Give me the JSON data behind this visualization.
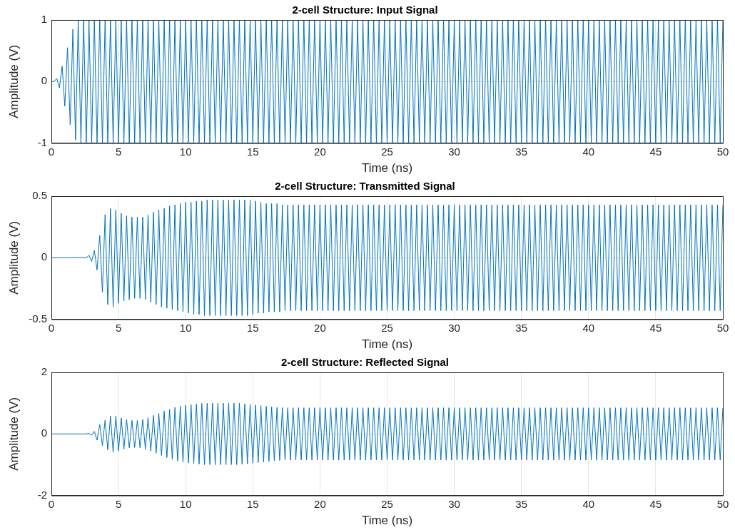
{
  "chart_data": [
    {
      "type": "line",
      "title": "2-cell Structure: Input Signal",
      "xlabel": "Time (ns)",
      "ylabel": "Amplitude (V)",
      "xlim": [
        0,
        50
      ],
      "ylim": [
        -1,
        1
      ],
      "xticks": [
        0,
        5,
        10,
        15,
        20,
        25,
        30,
        35,
        40,
        45,
        50
      ],
      "yticks": [
        -1,
        0,
        1
      ],
      "grid": true,
      "marker": "none",
      "line_style": "solid",
      "x": [
        0,
        0.2,
        0.4,
        0.6,
        0.8,
        1,
        1.2,
        1.4,
        1.6,
        1.8,
        2,
        2.2,
        2.4,
        2.6,
        2.8,
        3,
        3.2,
        3.4,
        3.6,
        3.8,
        4,
        4.2,
        4.4,
        4.6,
        4.8,
        5,
        5.2,
        5.4,
        5.6,
        5.8,
        6,
        6.2,
        6.4,
        6.6,
        6.8,
        7,
        7.2,
        7.4,
        7.6,
        7.8,
        8,
        8.2,
        8.4,
        8.6,
        8.8,
        9,
        9.2,
        9.4,
        9.6,
        9.8,
        10,
        10.2,
        10.4,
        10.6,
        10.8,
        11,
        11.2,
        11.4,
        11.6,
        11.8,
        12,
        12.2,
        12.4,
        12.6,
        12.8,
        13,
        13.2,
        13.4,
        13.6,
        13.8,
        14,
        14.2,
        14.4,
        14.6,
        14.8,
        15,
        15.2,
        15.4,
        15.6,
        15.8,
        16,
        16.2,
        16.4,
        16.6,
        16.8,
        17,
        17.2,
        17.4,
        17.6,
        17.8,
        18,
        18.2,
        18.4,
        18.6,
        18.8,
        19,
        19.2,
        19.4,
        19.6,
        19.8,
        20,
        20.2,
        20.4,
        20.6,
        20.8,
        21,
        21.2,
        21.4,
        21.6,
        21.8,
        22,
        22.2,
        22.4,
        22.6,
        22.8,
        23,
        23.2,
        23.4,
        23.6,
        23.8,
        24,
        24.2,
        24.4,
        24.6,
        24.8,
        25,
        25.2,
        25.4,
        25.6,
        25.8,
        26,
        26.2,
        26.4,
        26.6,
        26.8,
        27,
        27.2,
        27.4,
        27.6,
        27.8,
        28,
        28.2,
        28.4,
        28.6,
        28.8,
        29,
        29.2,
        29.4,
        29.6,
        29.8,
        30,
        30.2,
        30.4,
        30.6,
        30.8,
        31,
        31.2,
        31.4,
        31.6,
        31.8,
        32,
        32.2,
        32.4,
        32.6,
        32.8,
        33,
        33.2,
        33.4,
        33.6,
        33.8,
        34,
        34.2,
        34.4,
        34.6,
        34.8,
        35,
        35.2,
        35.4,
        35.6,
        35.8,
        36,
        36.2,
        36.4,
        36.6,
        36.8,
        37,
        37.2,
        37.4,
        37.6,
        37.8,
        38,
        38.2,
        38.4,
        38.6,
        38.8,
        39,
        39.2,
        39.4,
        39.6,
        39.8,
        40,
        40.2,
        40.4,
        40.6,
        40.8,
        41,
        41.2,
        41.4,
        41.6,
        41.8,
        42,
        42.2,
        42.4,
        42.6,
        42.8,
        43,
        43.2,
        43.4,
        43.6,
        43.8,
        44,
        44.2,
        44.4,
        44.6,
        44.8,
        45,
        45.2,
        45.4,
        45.6,
        45.8,
        46,
        46.2,
        46.4,
        46.6,
        46.8,
        47,
        47.2,
        47.4,
        47.6,
        47.8,
        48,
        48.2,
        48.4,
        48.6,
        48.8,
        49,
        49.2,
        49.4,
        49.6,
        49.8,
        50
      ],
      "series": [
        {
          "color": "#0072bd",
          "values": [
            0,
            0,
            0.05,
            -0.1,
            0.25,
            -0.4,
            0.55,
            -0.7,
            0.85,
            -0.95,
            1,
            -1,
            1,
            -1,
            1,
            -1,
            1,
            -1,
            1,
            -1,
            1,
            -1,
            1,
            -1,
            1,
            -1,
            1,
            -1,
            1,
            -1,
            1,
            -1,
            1,
            -1,
            1,
            -1,
            1,
            -1,
            1,
            -1,
            1,
            -1,
            1,
            -1,
            1,
            -1,
            1,
            -1,
            1,
            -1,
            1,
            -1,
            1,
            -1,
            1,
            -1,
            1,
            -1,
            1,
            -1,
            1,
            -1,
            1,
            -1,
            1,
            -1,
            1,
            -1,
            1,
            -1,
            1,
            -1,
            1,
            -1,
            1,
            -1,
            1,
            -1,
            1,
            -1,
            1,
            -1,
            1,
            -1,
            1,
            -1,
            1,
            -1,
            1,
            -1,
            1,
            -1,
            1,
            -1,
            1,
            -1,
            1,
            -1,
            1,
            -1,
            1,
            -1,
            1,
            -1,
            1,
            -1,
            1,
            -1,
            1,
            -1,
            1,
            -1,
            1,
            -1,
            1,
            -1,
            1,
            -1,
            1,
            -1,
            1,
            -1,
            1,
            -1,
            1,
            -1,
            1,
            -1,
            1,
            -1,
            1,
            -1,
            1,
            -1,
            1,
            -1,
            1,
            -1,
            1,
            -1,
            1,
            -1,
            1,
            -1,
            1,
            -1,
            1,
            -1,
            1,
            -1,
            1,
            -1,
            1,
            -1,
            1,
            -1,
            1,
            -1,
            1,
            -1,
            1,
            -1,
            1,
            -1,
            1,
            -1,
            1,
            -1,
            1,
            -1,
            1,
            -1,
            1,
            -1,
            1,
            -1,
            1,
            -1,
            1,
            -1,
            1,
            -1,
            1,
            -1,
            1,
            -1,
            1,
            -1,
            1,
            -1,
            1,
            -1,
            1,
            -1,
            1,
            -1,
            1,
            -1,
            1,
            -1,
            1,
            -1,
            1,
            -1,
            1,
            -1,
            1,
            -1,
            1,
            -1,
            1,
            -1,
            1,
            -1,
            1,
            -1,
            1,
            -1,
            1,
            -1,
            1,
            -1,
            1,
            -1,
            1,
            -1,
            1,
            -1,
            1,
            -1,
            1,
            -1,
            1,
            -1,
            1,
            -1,
            1,
            -1,
            1,
            -1,
            1,
            -1,
            1,
            -1,
            1,
            -1,
            1,
            -1,
            1,
            -1,
            1
          ]
        }
      ]
    },
    {
      "type": "line",
      "title": "2-cell Structure: Transmitted Signal",
      "xlabel": "Time (ns)",
      "ylabel": "Amplitude (V)",
      "xlim": [
        0,
        50
      ],
      "ylim": [
        -0.5,
        0.5
      ],
      "xticks": [
        0,
        5,
        10,
        15,
        20,
        25,
        30,
        35,
        40,
        45,
        50
      ],
      "yticks": [
        -0.5,
        0,
        0.5
      ],
      "grid": true,
      "marker": "none",
      "line_style": "solid",
      "x": [
        0,
        0.2,
        0.4,
        0.6,
        0.8,
        1,
        1.2,
        1.4,
        1.6,
        1.8,
        2,
        2.2,
        2.4,
        2.6,
        2.8,
        3,
        3.2,
        3.4,
        3.6,
        3.8,
        4,
        4.2,
        4.4,
        4.6,
        4.8,
        5,
        5.2,
        5.4,
        5.6,
        5.8,
        6,
        6.2,
        6.4,
        6.6,
        6.8,
        7,
        7.2,
        7.4,
        7.6,
        7.8,
        8,
        8.2,
        8.4,
        8.6,
        8.8,
        9,
        9.2,
        9.4,
        9.6,
        9.8,
        10,
        10.2,
        10.4,
        10.6,
        10.8,
        11,
        11.2,
        11.4,
        11.6,
        11.8,
        12,
        12.2,
        12.4,
        12.6,
        12.8,
        13,
        13.2,
        13.4,
        13.6,
        13.8,
        14,
        14.2,
        14.4,
        14.6,
        14.8,
        15,
        15.2,
        15.4,
        15.6,
        15.8,
        16,
        16.2,
        16.4,
        16.6,
        16.8,
        17,
        17.2,
        17.4,
        17.6,
        17.8,
        18,
        18.2,
        18.4,
        18.6,
        18.8,
        19,
        19.2,
        19.4,
        19.6,
        19.8,
        20,
        20.2,
        20.4,
        20.6,
        20.8,
        21,
        21.2,
        21.4,
        21.6,
        21.8,
        22,
        22.2,
        22.4,
        22.6,
        22.8,
        23,
        23.2,
        23.4,
        23.6,
        23.8,
        24,
        24.2,
        24.4,
        24.6,
        24.8,
        25,
        25.2,
        25.4,
        25.6,
        25.8,
        26,
        26.2,
        26.4,
        26.6,
        26.8,
        27,
        27.2,
        27.4,
        27.6,
        27.8,
        28,
        28.2,
        28.4,
        28.6,
        28.8,
        29,
        29.2,
        29.4,
        29.6,
        29.8,
        30,
        30.2,
        30.4,
        30.6,
        30.8,
        31,
        31.2,
        31.4,
        31.6,
        31.8,
        32,
        32.2,
        32.4,
        32.6,
        32.8,
        33,
        33.2,
        33.4,
        33.6,
        33.8,
        34,
        34.2,
        34.4,
        34.6,
        34.8,
        35,
        35.2,
        35.4,
        35.6,
        35.8,
        36,
        36.2,
        36.4,
        36.6,
        36.8,
        37,
        37.2,
        37.4,
        37.6,
        37.8,
        38,
        38.2,
        38.4,
        38.6,
        38.8,
        39,
        39.2,
        39.4,
        39.6,
        39.8,
        40,
        40.2,
        40.4,
        40.6,
        40.8,
        41,
        41.2,
        41.4,
        41.6,
        41.8,
        42,
        42.2,
        42.4,
        42.6,
        42.8,
        43,
        43.2,
        43.4,
        43.6,
        43.8,
        44,
        44.2,
        44.4,
        44.6,
        44.8,
        45,
        45.2,
        45.4,
        45.6,
        45.8,
        46,
        46.2,
        46.4,
        46.6,
        46.8,
        47,
        47.2,
        47.4,
        47.6,
        47.8,
        48,
        48.2,
        48.4,
        48.6,
        48.8,
        49,
        49.2,
        49.4,
        49.6,
        49.8,
        50
      ],
      "series": [
        {
          "color": "#0072bd",
          "values": [
            0,
            0,
            0,
            0,
            0,
            0,
            0,
            0,
            0,
            0,
            0,
            0,
            0,
            0,
            0.02,
            -0.03,
            0.06,
            -0.1,
            0.18,
            -0.28,
            0.35,
            -0.38,
            0.4,
            -0.4,
            0.39,
            -0.37,
            0.36,
            -0.35,
            0.34,
            -0.34,
            0.33,
            -0.33,
            0.33,
            -0.33,
            0.33,
            -0.34,
            0.35,
            -0.36,
            0.37,
            -0.38,
            0.39,
            -0.4,
            0.4,
            -0.41,
            0.42,
            -0.42,
            0.43,
            -0.43,
            0.44,
            -0.44,
            0.45,
            -0.45,
            0.45,
            -0.46,
            0.46,
            -0.46,
            0.46,
            -0.47,
            0.47,
            -0.47,
            0.47,
            -0.47,
            0.47,
            -0.47,
            0.47,
            -0.47,
            0.47,
            -0.47,
            0.47,
            -0.47,
            0.47,
            -0.47,
            0.47,
            -0.47,
            0.47,
            -0.46,
            0.46,
            -0.45,
            0.45,
            -0.45,
            0.44,
            -0.44,
            0.44,
            -0.44,
            0.44,
            -0.44,
            0.43,
            -0.43,
            0.43,
            -0.43,
            0.43,
            -0.43,
            0.43,
            -0.43,
            0.43,
            -0.43,
            0.43,
            -0.43,
            0.43,
            -0.43,
            0.43,
            -0.43,
            0.43,
            -0.43,
            0.43,
            -0.43,
            0.43,
            -0.43,
            0.43,
            -0.43,
            0.43,
            -0.43,
            0.43,
            -0.43,
            0.43,
            -0.43,
            0.43,
            -0.43,
            0.43,
            -0.43,
            0.43,
            -0.43,
            0.43,
            -0.43,
            0.43,
            -0.43,
            0.43,
            -0.43,
            0.43,
            -0.43,
            0.43,
            -0.43,
            0.43,
            -0.43,
            0.43,
            -0.43,
            0.43,
            -0.43,
            0.43,
            -0.43,
            0.43,
            -0.43,
            0.43,
            -0.43,
            0.43,
            -0.43,
            0.43,
            -0.43,
            0.43,
            -0.43,
            0.43,
            -0.43,
            0.43,
            -0.43,
            0.43,
            -0.43,
            0.43,
            -0.43,
            0.43,
            -0.43,
            0.43,
            -0.43,
            0.43,
            -0.43,
            0.43,
            -0.43,
            0.43,
            -0.43,
            0.43,
            -0.43,
            0.43,
            -0.43,
            0.43,
            -0.43,
            0.43,
            -0.43,
            0.43,
            -0.43,
            0.43,
            -0.43,
            0.43,
            -0.43,
            0.43,
            -0.43,
            0.43,
            -0.43,
            0.43,
            -0.43,
            0.43,
            -0.43,
            0.43,
            -0.43,
            0.43,
            -0.43,
            0.43,
            -0.43,
            0.43,
            -0.43,
            0.43,
            -0.43,
            0.43,
            -0.43,
            0.43,
            -0.43,
            0.43,
            -0.43,
            0.43,
            -0.43,
            0.43,
            -0.43,
            0.43,
            -0.43,
            0.43,
            -0.43,
            0.43,
            -0.43,
            0.43,
            -0.43,
            0.43,
            -0.43,
            0.43,
            -0.43,
            0.43,
            -0.43,
            0.43,
            -0.43,
            0.43,
            -0.43,
            0.43,
            -0.43,
            0.43,
            -0.43,
            0.43,
            -0.43,
            0.43,
            -0.43,
            0.43,
            -0.43,
            0.43,
            -0.43,
            0.43,
            -0.43,
            0.43,
            -0.43,
            0.43,
            -0.43,
            0.43,
            -0.43,
            0.43,
            -0.43,
            0.43
          ]
        }
      ]
    },
    {
      "type": "line",
      "title": "2-cell Structure: Reflected Signal",
      "xlabel": "Time (ns)",
      "ylabel": "Amplitude (V)",
      "xlim": [
        0,
        50
      ],
      "ylim": [
        -2,
        2
      ],
      "xticks": [
        0,
        5,
        10,
        15,
        20,
        25,
        30,
        35,
        40,
        45,
        50
      ],
      "yticks": [
        -2,
        0,
        2
      ],
      "grid": true,
      "marker": "none",
      "line_style": "solid",
      "x": [
        0,
        0.2,
        0.4,
        0.6,
        0.8,
        1,
        1.2,
        1.4,
        1.6,
        1.8,
        2,
        2.2,
        2.4,
        2.6,
        2.8,
        3,
        3.2,
        3.4,
        3.6,
        3.8,
        4,
        4.2,
        4.4,
        4.6,
        4.8,
        5,
        5.2,
        5.4,
        5.6,
        5.8,
        6,
        6.2,
        6.4,
        6.6,
        6.8,
        7,
        7.2,
        7.4,
        7.6,
        7.8,
        8,
        8.2,
        8.4,
        8.6,
        8.8,
        9,
        9.2,
        9.4,
        9.6,
        9.8,
        10,
        10.2,
        10.4,
        10.6,
        10.8,
        11,
        11.2,
        11.4,
        11.6,
        11.8,
        12,
        12.2,
        12.4,
        12.6,
        12.8,
        13,
        13.2,
        13.4,
        13.6,
        13.8,
        14,
        14.2,
        14.4,
        14.6,
        14.8,
        15,
        15.2,
        15.4,
        15.6,
        15.8,
        16,
        16.2,
        16.4,
        16.6,
        16.8,
        17,
        17.2,
        17.4,
        17.6,
        17.8,
        18,
        18.2,
        18.4,
        18.6,
        18.8,
        19,
        19.2,
        19.4,
        19.6,
        19.8,
        20,
        20.2,
        20.4,
        20.6,
        20.8,
        21,
        21.2,
        21.4,
        21.6,
        21.8,
        22,
        22.2,
        22.4,
        22.6,
        22.8,
        23,
        23.2,
        23.4,
        23.6,
        23.8,
        24,
        24.2,
        24.4,
        24.6,
        24.8,
        25,
        25.2,
        25.4,
        25.6,
        25.8,
        26,
        26.2,
        26.4,
        26.6,
        26.8,
        27,
        27.2,
        27.4,
        27.6,
        27.8,
        28,
        28.2,
        28.4,
        28.6,
        28.8,
        29,
        29.2,
        29.4,
        29.6,
        29.8,
        30,
        30.2,
        30.4,
        30.6,
        30.8,
        31,
        31.2,
        31.4,
        31.6,
        31.8,
        32,
        32.2,
        32.4,
        32.6,
        32.8,
        33,
        33.2,
        33.4,
        33.6,
        33.8,
        34,
        34.2,
        34.4,
        34.6,
        34.8,
        35,
        35.2,
        35.4,
        35.6,
        35.8,
        36,
        36.2,
        36.4,
        36.6,
        36.8,
        37,
        37.2,
        37.4,
        37.6,
        37.8,
        38,
        38.2,
        38.4,
        38.6,
        38.8,
        39,
        39.2,
        39.4,
        39.6,
        39.8,
        40,
        40.2,
        40.4,
        40.6,
        40.8,
        41,
        41.2,
        41.4,
        41.6,
        41.8,
        42,
        42.2,
        42.4,
        42.6,
        42.8,
        43,
        43.2,
        43.4,
        43.6,
        43.8,
        44,
        44.2,
        44.4,
        44.6,
        44.8,
        45,
        45.2,
        45.4,
        45.6,
        45.8,
        46,
        46.2,
        46.4,
        46.6,
        46.8,
        47,
        47.2,
        47.4,
        47.6,
        47.8,
        48,
        48.2,
        48.4,
        48.6,
        48.8,
        49,
        49.2,
        49.4,
        49.6,
        49.8,
        50
      ],
      "series": [
        {
          "color": "#0072bd",
          "values": [
            0,
            0,
            0,
            0,
            0,
            0,
            0,
            0,
            0,
            0,
            0,
            0,
            0,
            0,
            0.02,
            -0.04,
            0.08,
            -0.2,
            0.3,
            -0.38,
            0.45,
            -0.52,
            0.58,
            -0.6,
            0.58,
            -0.55,
            0.52,
            -0.5,
            0.47,
            -0.45,
            0.44,
            -0.44,
            0.44,
            -0.45,
            0.47,
            -0.5,
            0.53,
            -0.56,
            0.6,
            -0.63,
            0.67,
            -0.7,
            0.74,
            -0.77,
            0.8,
            -0.83,
            0.86,
            -0.88,
            0.9,
            -0.91,
            0.93,
            -0.94,
            0.95,
            -0.96,
            0.97,
            -0.98,
            0.99,
            -1,
            1,
            -1,
            1,
            -1,
            1,
            -1,
            1,
            -1,
            1,
            -1,
            1,
            -1,
            1,
            -0.99,
            0.98,
            -0.97,
            0.96,
            -0.95,
            0.94,
            -0.93,
            0.92,
            -0.91,
            0.9,
            -0.89,
            0.88,
            -0.87,
            0.86,
            -0.86,
            0.85,
            -0.85,
            0.85,
            -0.85,
            0.85,
            -0.85,
            0.85,
            -0.85,
            0.85,
            -0.85,
            0.85,
            -0.85,
            0.85,
            -0.85,
            0.85,
            -0.85,
            0.85,
            -0.85,
            0.85,
            -0.85,
            0.85,
            -0.85,
            0.85,
            -0.85,
            0.85,
            -0.85,
            0.85,
            -0.85,
            0.85,
            -0.85,
            0.85,
            -0.85,
            0.85,
            -0.85,
            0.85,
            -0.85,
            0.85,
            -0.85,
            0.85,
            -0.85,
            0.85,
            -0.85,
            0.85,
            -0.85,
            0.85,
            -0.85,
            0.85,
            -0.85,
            0.85,
            -0.85,
            0.85,
            -0.85,
            0.85,
            -0.85,
            0.85,
            -0.85,
            0.85,
            -0.85,
            0.85,
            -0.85,
            0.85,
            -0.85,
            0.85,
            -0.85,
            0.85,
            -0.85,
            0.85,
            -0.85,
            0.85,
            -0.85,
            0.85,
            -0.85,
            0.85,
            -0.85,
            0.85,
            -0.85,
            0.85,
            -0.85,
            0.85,
            -0.85,
            0.85,
            -0.85,
            0.85,
            -0.85,
            0.85,
            -0.85,
            0.85,
            -0.85,
            0.85,
            -0.85,
            0.85,
            -0.85,
            0.85,
            -0.85,
            0.85,
            -0.85,
            0.85,
            -0.85,
            0.85,
            -0.85,
            0.85,
            -0.85,
            0.85,
            -0.85,
            0.85,
            -0.85,
            0.85,
            -0.85,
            0.85,
            -0.85,
            0.85,
            -0.85,
            0.85,
            -0.85,
            0.85,
            -0.85,
            0.85,
            -0.85,
            0.85,
            -0.85,
            0.85,
            -0.85,
            0.85,
            -0.85,
            0.85,
            -0.85,
            0.85,
            -0.85,
            0.85,
            -0.85,
            0.85,
            -0.85,
            0.85,
            -0.85,
            0.85,
            -0.85,
            0.85,
            -0.85,
            0.85,
            -0.85,
            0.85,
            -0.85,
            0.85,
            -0.85,
            0.85,
            -0.85,
            0.85,
            -0.85,
            0.85,
            -0.85,
            0.85,
            -0.85,
            0.85,
            -0.85,
            0.85,
            -0.85,
            0.85,
            -0.85,
            0.85,
            -0.85,
            0.85,
            -0.85,
            0.85,
            -0.85,
            0.85
          ]
        }
      ]
    }
  ]
}
